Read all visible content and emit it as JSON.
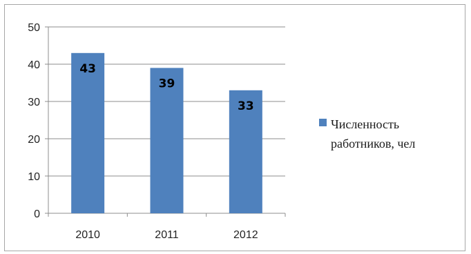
{
  "chart_data": {
    "type": "bar",
    "categories": [
      "2010",
      "2011",
      "2012"
    ],
    "series": [
      {
        "name": "Численность работников, чел",
        "values": [
          43,
          39,
          33
        ]
      }
    ],
    "data_labels": [
      "43",
      "39",
      "33"
    ],
    "yticks": [
      "0",
      "10",
      "20",
      "30",
      "40",
      "50"
    ],
    "ylim": [
      0,
      50
    ],
    "grid": true,
    "legend_position": "right",
    "bar_color": "#4f81bd"
  }
}
